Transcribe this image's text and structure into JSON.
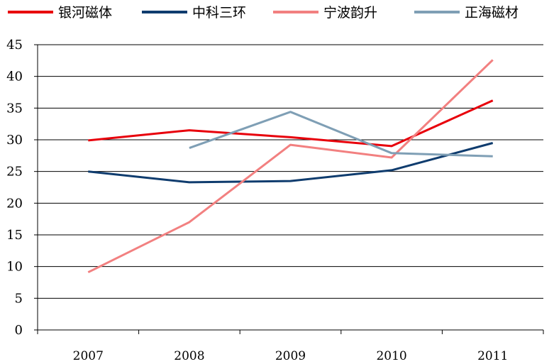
{
  "chart_data": {
    "type": "line",
    "title": "",
    "xlabel": "",
    "ylabel": "",
    "categories": [
      "2007",
      "2008",
      "2009",
      "2010",
      "2011"
    ],
    "ylim": [
      0,
      45
    ],
    "yticks": [
      0,
      5,
      10,
      15,
      20,
      25,
      30,
      35,
      40,
      45
    ],
    "grid": "horizontal",
    "legend_position": "top",
    "series": [
      {
        "name": "银河磁体",
        "color": "#e8000b",
        "values": [
          29.9,
          31.5,
          30.4,
          29.0,
          36.2
        ]
      },
      {
        "name": "中科三环",
        "color": "#0f3c6e",
        "values": [
          25.0,
          23.3,
          23.5,
          25.2,
          29.5
        ]
      },
      {
        "name": "宁波韵升",
        "color": "#f28080",
        "values": [
          9.1,
          17.0,
          29.2,
          27.2,
          42.6
        ]
      },
      {
        "name": "正海磁材",
        "color": "#7f9fb5",
        "values": [
          null,
          28.7,
          34.4,
          27.9,
          27.4
        ]
      }
    ]
  }
}
